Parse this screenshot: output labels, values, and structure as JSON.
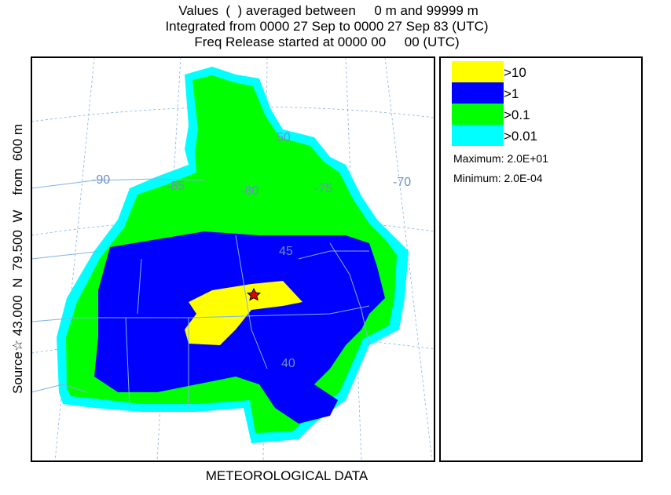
{
  "header": {
    "lines": [
      "Values  (  ) averaged between     0 m and 99999 m",
      "Integrated from 0000 27 Sep to 0000 27 Sep 83 (UTC)",
      "Freq Release started at 0000 00     00 (UTC)"
    ]
  },
  "side_label": "Source☆ 43.000  N  79.500  W    from  600 m",
  "footer": "METEOROLOGICAL DATA",
  "legend": {
    "items": [
      {
        "label": ">10",
        "color": "#ffff00"
      },
      {
        "label": ">1",
        "color": "#0000ff"
      },
      {
        "label": ">0.1",
        "color": "#00ff00"
      },
      {
        "label": ">0.01",
        "color": "#00ffff"
      }
    ],
    "maximum": "Maximum: 2.0E+01",
    "minimum": "Minimum: 2.0E-04"
  },
  "map": {
    "longitude_labels": [
      "-90",
      "-85",
      "-80",
      "-75",
      "-70"
    ],
    "latitude_labels": [
      "50",
      "45",
      "40"
    ]
  }
}
